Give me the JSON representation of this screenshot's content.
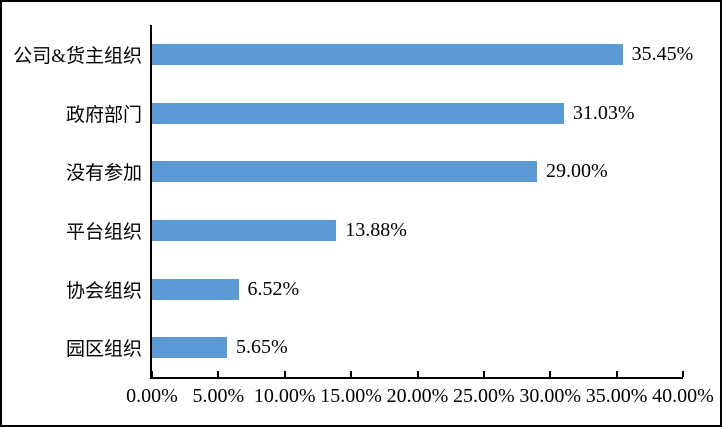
{
  "chart_data": {
    "type": "bar",
    "orientation": "horizontal",
    "title": "",
    "xlabel": "",
    "ylabel": "",
    "categories": [
      "公司&货主组织",
      "政府部门",
      "没有参加",
      "平台组织",
      "协会组织",
      "园区组织"
    ],
    "values": [
      35.45,
      31.03,
      29.0,
      13.88,
      6.52,
      5.65
    ],
    "data_labels": [
      "35.45%",
      "31.03%",
      "29.00%",
      "13.88%",
      "6.52%",
      "5.65%"
    ],
    "x_axis": {
      "min": 0,
      "max": 40,
      "step": 5,
      "tick_labels": [
        "0.00%",
        "5.00%",
        "10.00%",
        "15.00%",
        "20.00%",
        "25.00%",
        "30.00%",
        "35.00%",
        "40.00%"
      ]
    },
    "grid": false,
    "legend": false,
    "colors": {
      "bar": "#5B9BD5",
      "axis": "#000000",
      "text": "#000000",
      "background": "#ffffff",
      "frame_border": "#000000"
    }
  }
}
